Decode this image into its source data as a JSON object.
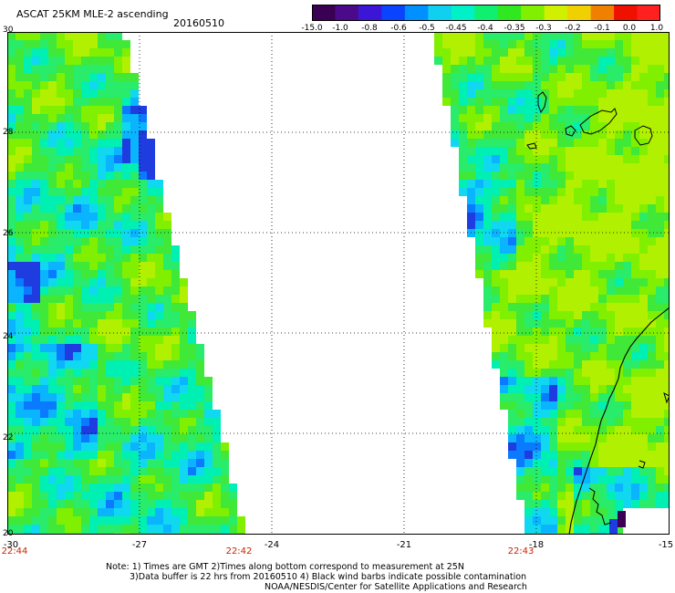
{
  "header": {
    "title": "ASCAT 25KM MLE-2 ascending",
    "date": "20160510"
  },
  "colorbar": {
    "labels": [
      "-15.0",
      "-1.0",
      "-0.8",
      "-0.6",
      "-0.5",
      "-0.45",
      "-0.4",
      "-0.35",
      "-0.3",
      "-0.2",
      "-0.1",
      "0.0",
      "1.0"
    ]
  },
  "map": {
    "lat_labels": [
      "30",
      "28",
      "26",
      "24",
      "22",
      "20"
    ],
    "lon_labels": [
      "-30",
      "-27",
      "-24",
      "-21",
      "-18",
      "-15"
    ],
    "time_labels": [
      "22:44",
      "22:42",
      "22:43"
    ],
    "lat_range": [
      20,
      30
    ],
    "lon_range": [
      -30,
      -15
    ]
  },
  "footer": {
    "note_line1": "Note: 1) Times are GMT 2)Times along bottom correspond to measurement at 25N",
    "note_line2": "3)Data buffer is 22 hrs from 20160510 4) Black wind barbs indicate possible contamination",
    "note_line3": "NOAA/NESDIS/Center for Satellite Applications and Research"
  }
}
